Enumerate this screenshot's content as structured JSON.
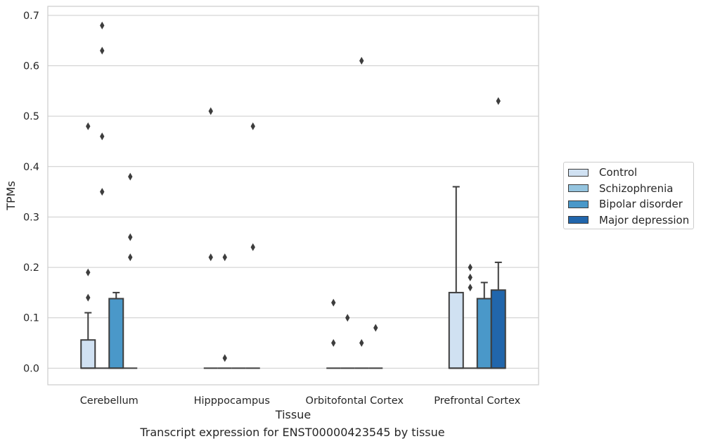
{
  "chart_data": {
    "type": "box",
    "xlabel": "Tissue",
    "ylabel": "TPMs",
    "ylim": [
      -0.033,
      0.718
    ],
    "yticks": [
      0.0,
      0.1,
      0.2,
      0.3,
      0.4,
      0.5,
      0.6,
      0.7
    ],
    "ytick_labels": [
      "0.0",
      "0.1",
      "0.2",
      "0.3",
      "0.4",
      "0.5",
      "0.6",
      "0.7"
    ],
    "categories": [
      "Cerebellum",
      "Hipppocampus",
      "Orbitofontal Cortex",
      "Prefrontal Cortex"
    ],
    "grid": true,
    "legend_position": "right",
    "series": [
      {
        "name": "Control",
        "color": "#d0e1f2",
        "boxes": [
          {
            "q1": 0.0,
            "median": 0.0,
            "q3": 0.056,
            "whisker_low": 0.0,
            "whisker_high": 0.11,
            "fliers": [
              0.14,
              0.19,
              0.48
            ]
          },
          {
            "q1": 0.0,
            "median": 0.0,
            "q3": 0.0,
            "whisker_low": 0.0,
            "whisker_high": 0.0,
            "fliers": [
              0.22,
              0.51
            ]
          },
          {
            "q1": 0.0,
            "median": 0.0,
            "q3": 0.0,
            "whisker_low": 0.0,
            "whisker_high": 0.0,
            "fliers": [
              0.05,
              0.13
            ]
          },
          {
            "q1": 0.0,
            "median": 0.0,
            "q3": 0.15,
            "whisker_low": 0.0,
            "whisker_high": 0.36,
            "fliers": []
          }
        ]
      },
      {
        "name": "Schizophrenia",
        "color": "#94c4df",
        "boxes": [
          {
            "q1": 0.0,
            "median": 0.0,
            "q3": 0.0,
            "whisker_low": 0.0,
            "whisker_high": 0.0,
            "fliers": [
              0.35,
              0.46,
              0.63,
              0.68
            ]
          },
          {
            "q1": 0.0,
            "median": 0.0,
            "q3": 0.0,
            "whisker_low": 0.0,
            "whisker_high": 0.0,
            "fliers": [
              0.02,
              0.22
            ]
          },
          {
            "q1": 0.0,
            "median": 0.0,
            "q3": 0.0,
            "whisker_low": 0.0,
            "whisker_high": 0.0,
            "fliers": [
              0.1
            ]
          },
          {
            "q1": 0.0,
            "median": 0.0,
            "q3": 0.0,
            "whisker_low": 0.0,
            "whisker_high": 0.0,
            "fliers": [
              0.16,
              0.18,
              0.2
            ]
          }
        ]
      },
      {
        "name": "Bipolar disorder",
        "color": "#4a98c9",
        "boxes": [
          {
            "q1": 0.0,
            "median": 0.0,
            "q3": 0.138,
            "whisker_low": 0.0,
            "whisker_high": 0.15,
            "fliers": []
          },
          {
            "q1": 0.0,
            "median": 0.0,
            "q3": 0.0,
            "whisker_low": 0.0,
            "whisker_high": 0.0,
            "fliers": []
          },
          {
            "q1": 0.0,
            "median": 0.0,
            "q3": 0.0,
            "whisker_low": 0.0,
            "whisker_high": 0.0,
            "fliers": [
              0.05,
              0.61
            ]
          },
          {
            "q1": 0.0,
            "median": 0.0,
            "q3": 0.138,
            "whisker_low": 0.0,
            "whisker_high": 0.17,
            "fliers": []
          }
        ]
      },
      {
        "name": "Major depression",
        "color": "#2166ac",
        "boxes": [
          {
            "q1": 0.0,
            "median": 0.0,
            "q3": 0.0,
            "whisker_low": 0.0,
            "whisker_high": 0.0,
            "fliers": [
              0.22,
              0.26,
              0.38
            ]
          },
          {
            "q1": 0.0,
            "median": 0.0,
            "q3": 0.0,
            "whisker_low": 0.0,
            "whisker_high": 0.0,
            "fliers": [
              0.24,
              0.48
            ]
          },
          {
            "q1": 0.0,
            "median": 0.0,
            "q3": 0.0,
            "whisker_low": 0.0,
            "whisker_high": 0.0,
            "fliers": [
              0.08
            ]
          },
          {
            "q1": 0.0,
            "median": 0.0,
            "q3": 0.155,
            "whisker_low": 0.0,
            "whisker_high": 0.21,
            "fliers": [
              0.53
            ]
          }
        ]
      }
    ]
  },
  "caption": "Transcript expression for ENST00000423545 by tissue"
}
